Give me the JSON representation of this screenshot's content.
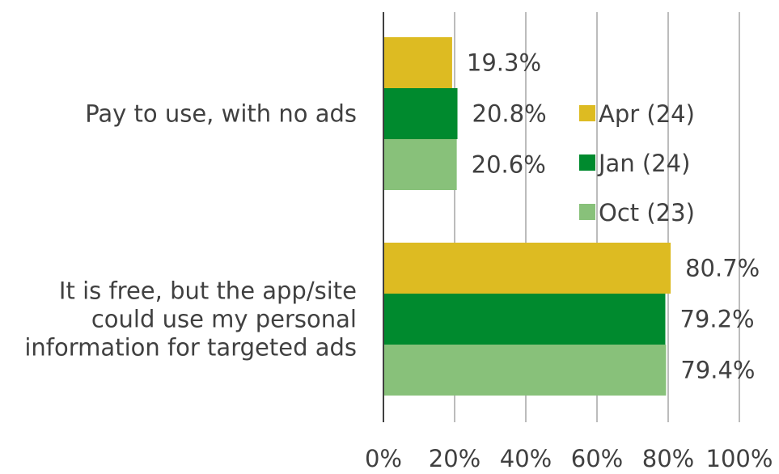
{
  "chart_data": {
    "type": "bar",
    "orientation": "horizontal",
    "categories": [
      {
        "id": "pay",
        "lines": [
          "Pay to use, with no ads"
        ]
      },
      {
        "id": "free",
        "lines": [
          "It is free, but the app/site",
          "could use my personal",
          "information for targeted ads"
        ]
      }
    ],
    "series": [
      {
        "name": "Apr (24)",
        "color": "#DDBB22",
        "values": [
          19.3,
          80.7
        ],
        "labels": [
          "19.3%",
          "80.7%"
        ]
      },
      {
        "name": "Jan (24)",
        "color": "#008A2E",
        "values": [
          20.8,
          79.2
        ],
        "labels": [
          "20.8%",
          "79.2%"
        ]
      },
      {
        "name": "Oct (23)",
        "color": "#88C17A",
        "values": [
          20.6,
          79.4
        ],
        "labels": [
          "20.6%",
          "79.4%"
        ]
      }
    ],
    "xlim": [
      0,
      100
    ],
    "xticks": [
      0,
      20,
      40,
      60,
      80,
      100
    ],
    "xtick_labels": [
      "0%",
      "20%",
      "40%",
      "60%",
      "80%",
      "100%"
    ],
    "grid": "vertical",
    "legend": "right"
  }
}
